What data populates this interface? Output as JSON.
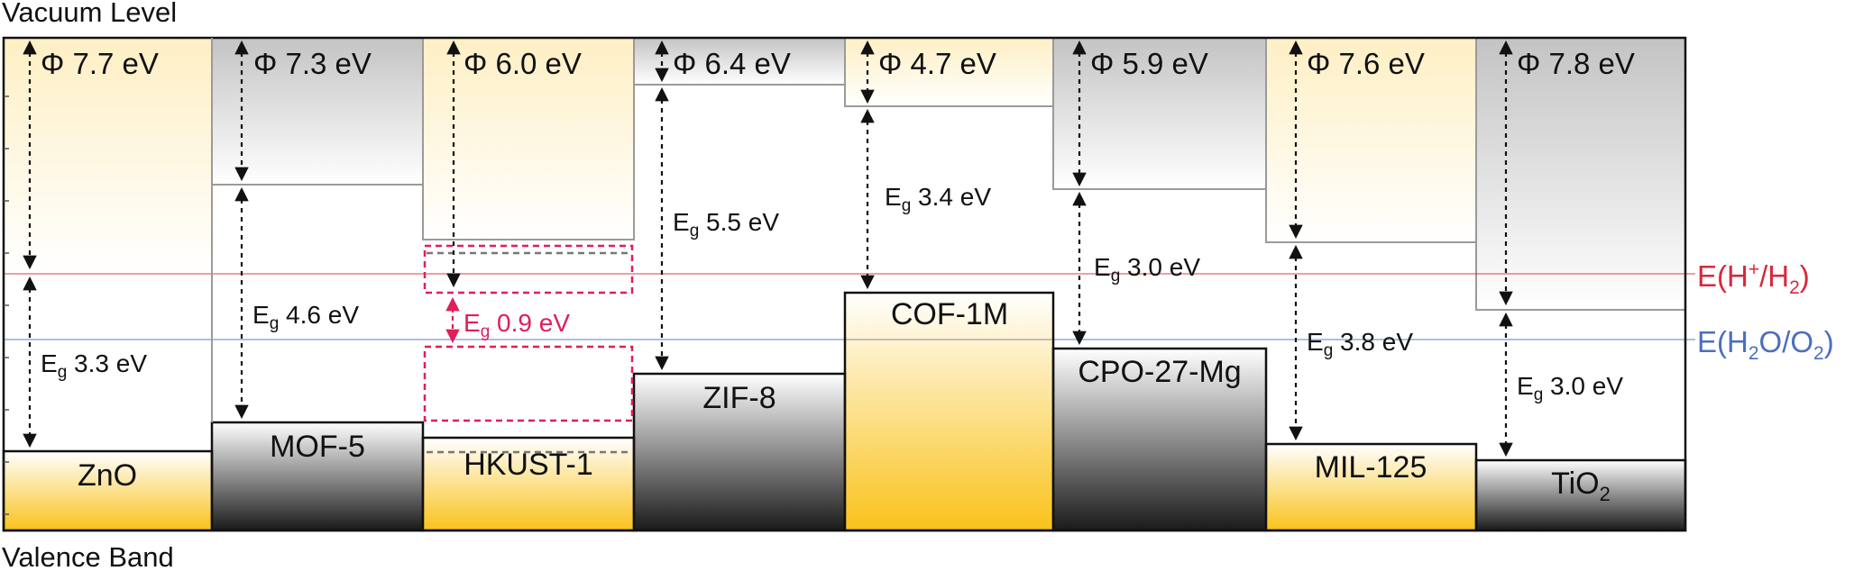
{
  "labels": {
    "vacuum_level": "Vacuum Level",
    "valence_band": "Valence Band",
    "h_plus_h2": {
      "prefix": "E(H",
      "sup": "+",
      "mid": "/H",
      "sub": "2",
      "suffix": ")"
    },
    "h2o_o2": {
      "prefix": "E(H",
      "sub1": "2",
      "mid": "O/O",
      "sub2": "2",
      "suffix": ")"
    }
  },
  "colors": {
    "yellow": "#f9c21a",
    "gray": "#2a2a2a",
    "h_plus_line": "#d62a3a",
    "h2o_line": "#4a6fbf",
    "hkust_highlight": "#e01e5a"
  },
  "materials": [
    {
      "name": "ZnO",
      "name_sub": "",
      "style": "yellow",
      "phi": "Φ 7.7 eV",
      "eg": "3.3 eV"
    },
    {
      "name": "MOF-5",
      "name_sub": "",
      "style": "gray",
      "phi": "Φ 7.3 eV",
      "eg": "4.6 eV"
    },
    {
      "name": "HKUST-1",
      "name_sub": "",
      "style": "yellow",
      "phi": "Φ 6.0 eV",
      "eg": "0.9 eV"
    },
    {
      "name": "ZIF-8",
      "name_sub": "",
      "style": "gray",
      "phi": "Φ 6.4 eV",
      "eg": "5.5 eV"
    },
    {
      "name": "COF-1M",
      "name_sub": "",
      "style": "yellow",
      "phi": "Φ 4.7 eV",
      "eg": "3.4 eV"
    },
    {
      "name": "CPO-27-Mg",
      "name_sub": "",
      "style": "gray",
      "phi": "Φ 5.9 eV",
      "eg": "3.0 eV"
    },
    {
      "name": "MIL-125",
      "name_sub": "",
      "style": "yellow",
      "phi": "Φ 7.6 eV",
      "eg": "3.8 eV"
    },
    {
      "name": "TiO",
      "name_sub": "2",
      "style": "gray",
      "phi": "Φ 7.8 eV",
      "eg": "3.0 eV"
    }
  ]
}
